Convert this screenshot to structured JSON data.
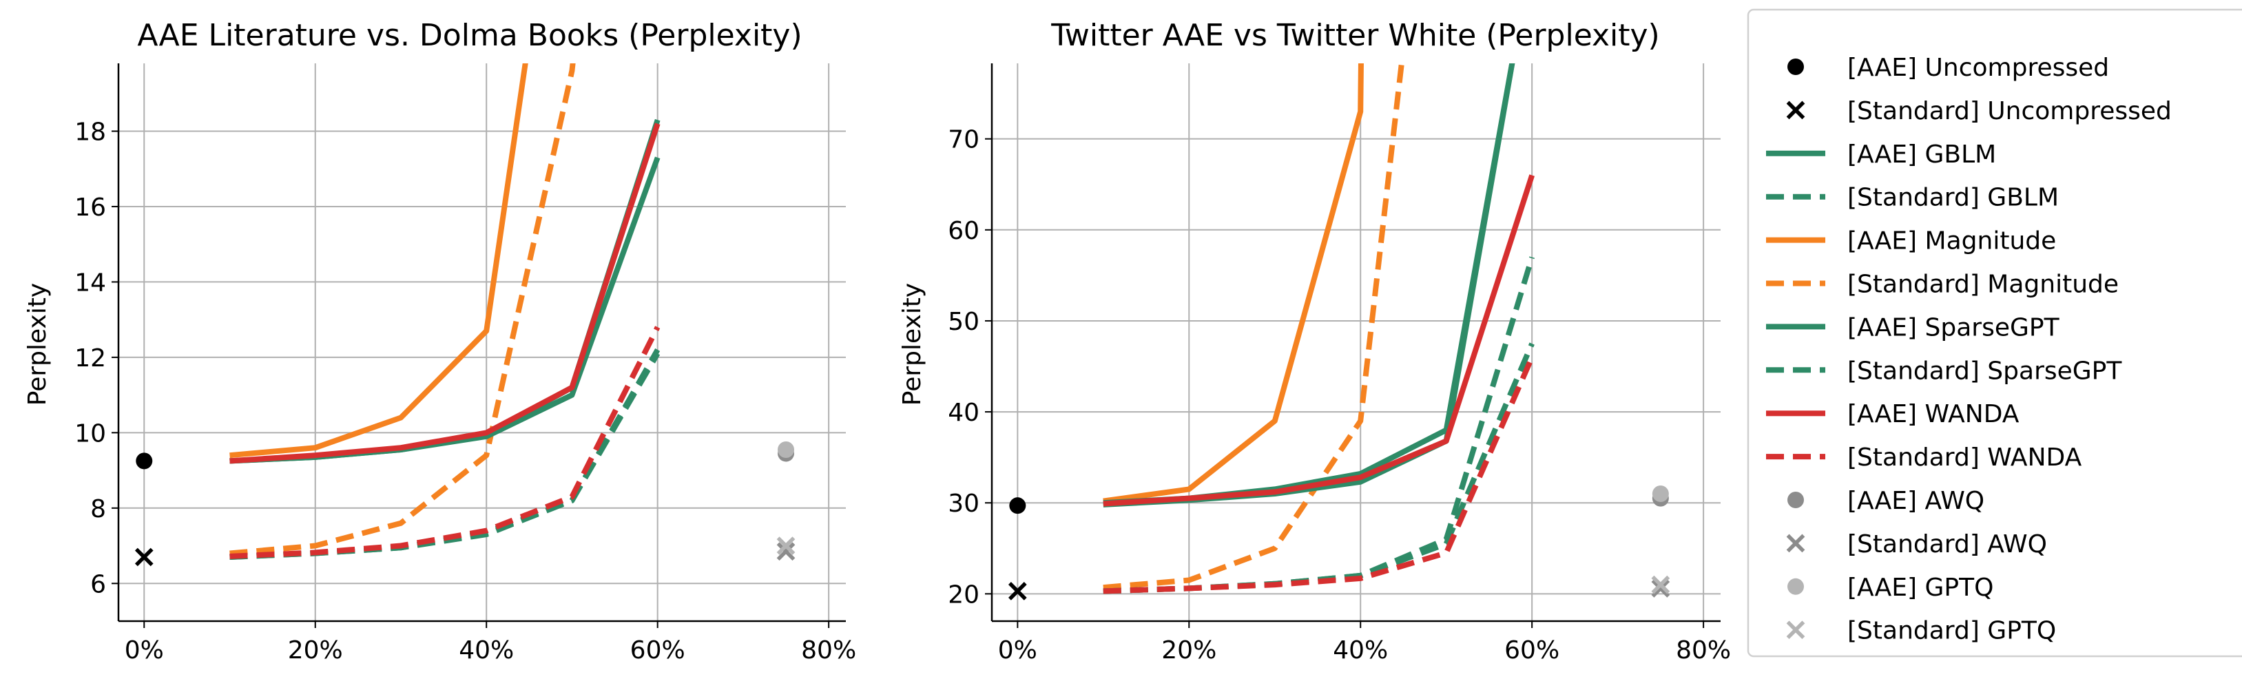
{
  "figure": {
    "background": "#ffffff"
  },
  "chart_data": [
    {
      "id": "aae-lit",
      "type": "line",
      "title": "AAE Literature vs. Dolma Books (Perplexity)",
      "xlabel": "",
      "ylabel": "Perplexity",
      "xlim": [
        -3,
        82
      ],
      "ylim": [
        5,
        19.8
      ],
      "xticks": [
        0,
        20,
        40,
        60,
        80
      ],
      "xtick_labels": [
        "0%",
        "20%",
        "40%",
        "60%",
        "80%"
      ],
      "yticks": [
        6,
        8,
        10,
        12,
        14,
        16,
        18
      ],
      "ytick_labels": [
        "6",
        "8",
        "10",
        "12",
        "14",
        "16",
        "18"
      ],
      "grid": true,
      "series": [
        {
          "name": "[Standard] Magnitude",
          "color": "#f58220",
          "dash": true,
          "x": [
            10,
            20,
            30,
            40,
            50,
            55
          ],
          "y": [
            6.8,
            7.0,
            7.6,
            9.4,
            19.6,
            30
          ]
        },
        {
          "name": "[AAE] Magnitude",
          "color": "#f58220",
          "dash": false,
          "x": [
            10,
            20,
            30,
            40,
            45,
            50
          ],
          "y": [
            9.4,
            9.6,
            10.4,
            12.7,
            20.5,
            30
          ]
        },
        {
          "name": "[Standard] SparseGPT",
          "color": "#2e8b67",
          "dash": true,
          "x": [
            10,
            20,
            30,
            40,
            50,
            60
          ],
          "y": [
            6.7,
            6.8,
            6.95,
            7.35,
            8.2,
            12.2
          ]
        },
        {
          "name": "[Standard] GBLM",
          "color": "#2e8b67",
          "dash": true,
          "x": [
            10,
            20,
            30,
            40,
            50,
            60
          ],
          "y": [
            6.7,
            6.8,
            6.95,
            7.3,
            8.2,
            12.1
          ]
        },
        {
          "name": "[AAE] SparseGPT",
          "color": "#2e8b67",
          "dash": false,
          "x": [
            10,
            20,
            30,
            40,
            50,
            60
          ],
          "y": [
            9.25,
            9.35,
            9.55,
            9.9,
            11.0,
            17.3
          ]
        },
        {
          "name": "[AAE] GBLM",
          "color": "#2e8b67",
          "dash": false,
          "x": [
            10,
            20,
            30,
            40,
            50,
            60
          ],
          "y": [
            9.25,
            9.35,
            9.55,
            9.95,
            11.2,
            18.3
          ]
        },
        {
          "name": "[Standard] WANDA",
          "color": "#d62f2f",
          "dash": true,
          "x": [
            10,
            20,
            30,
            40,
            50,
            60
          ],
          "y": [
            6.72,
            6.82,
            7.0,
            7.4,
            8.3,
            12.8
          ]
        },
        {
          "name": "[AAE] WANDA",
          "color": "#d62f2f",
          "dash": false,
          "x": [
            10,
            20,
            30,
            40,
            50,
            60
          ],
          "y": [
            9.25,
            9.4,
            9.6,
            10.0,
            11.2,
            18.2
          ]
        }
      ],
      "points": [
        {
          "name": "[AAE] Uncompressed",
          "marker": "circle",
          "color": "#000000",
          "x": 0,
          "y": 9.25
        },
        {
          "name": "[Standard] Uncompressed",
          "marker": "x",
          "color": "#000000",
          "x": 0,
          "y": 6.7
        },
        {
          "name": "[AAE] AWQ",
          "marker": "circle",
          "color": "#8c8c8c",
          "x": 75,
          "y": 9.45
        },
        {
          "name": "[Standard] AWQ",
          "marker": "x",
          "color": "#8c8c8c",
          "x": 75,
          "y": 6.85
        },
        {
          "name": "[AAE] GPTQ",
          "marker": "circle",
          "color": "#b4b4b4",
          "x": 75,
          "y": 9.55
        },
        {
          "name": "[Standard] GPTQ",
          "marker": "x",
          "color": "#b4b4b4",
          "x": 75,
          "y": 7.0
        }
      ]
    },
    {
      "id": "twitter",
      "type": "line",
      "title": "Twitter AAE vs Twitter White (Perplexity)",
      "xlabel": "",
      "ylabel": "Perplexity",
      "xlim": [
        -3,
        82
      ],
      "ylim": [
        17,
        78.3
      ],
      "xticks": [
        0,
        20,
        40,
        60,
        80
      ],
      "xtick_labels": [
        "0%",
        "20%",
        "40%",
        "60%",
        "80%"
      ],
      "yticks": [
        20,
        30,
        40,
        50,
        60,
        70
      ],
      "ytick_labels": [
        "20",
        "30",
        "40",
        "50",
        "60",
        "70"
      ],
      "grid": true,
      "series": [
        {
          "name": "[Standard] Magnitude",
          "color": "#f58220",
          "dash": true,
          "x": [
            10,
            20,
            30,
            40,
            45
          ],
          "y": [
            20.7,
            21.5,
            25.0,
            39.0,
            80
          ]
        },
        {
          "name": "[AAE] Magnitude",
          "color": "#f58220",
          "dash": false,
          "x": [
            10,
            20,
            30,
            40,
            40.1
          ],
          "y": [
            30.2,
            31.5,
            39.0,
            73.0,
            82
          ]
        },
        {
          "name": "[Standard] SparseGPT",
          "color": "#2e8b67",
          "dash": true,
          "x": [
            10,
            20,
            30,
            40,
            50,
            60
          ],
          "y": [
            20.3,
            20.6,
            21.1,
            22.0,
            26.0,
            57.0
          ]
        },
        {
          "name": "[Standard] GBLM",
          "color": "#2e8b67",
          "dash": true,
          "x": [
            10,
            20,
            30,
            40,
            50,
            60
          ],
          "y": [
            20.3,
            20.6,
            21.1,
            22.0,
            25.5,
            47.5
          ]
        },
        {
          "name": "[AAE] SparseGPT",
          "color": "#2e8b67",
          "dash": false,
          "x": [
            10,
            20,
            30,
            40,
            50,
            58
          ],
          "y": [
            30.0,
            30.5,
            31.5,
            33.2,
            38.0,
            80
          ]
        },
        {
          "name": "[AAE] GBLM",
          "color": "#2e8b67",
          "dash": false,
          "x": [
            10,
            20,
            30,
            40,
            50,
            58
          ],
          "y": [
            29.8,
            30.3,
            31.0,
            32.3,
            36.8,
            80
          ]
        },
        {
          "name": "[Standard] WANDA",
          "color": "#d62f2f",
          "dash": true,
          "x": [
            10,
            20,
            30,
            40,
            50,
            60
          ],
          "y": [
            20.3,
            20.6,
            21.0,
            21.7,
            24.5,
            46.0
          ]
        },
        {
          "name": "[AAE] WANDA",
          "color": "#d62f2f",
          "dash": false,
          "x": [
            10,
            20,
            30,
            40,
            50,
            60
          ],
          "y": [
            29.9,
            30.5,
            31.2,
            32.8,
            36.8,
            66.0
          ]
        }
      ],
      "points": [
        {
          "name": "[AAE] Uncompressed",
          "marker": "circle",
          "color": "#000000",
          "x": 0,
          "y": 29.7
        },
        {
          "name": "[Standard] Uncompressed",
          "marker": "x",
          "color": "#000000",
          "x": 0,
          "y": 20.3
        },
        {
          "name": "[AAE] AWQ",
          "marker": "circle",
          "color": "#8c8c8c",
          "x": 75,
          "y": 30.5
        },
        {
          "name": "[Standard] AWQ",
          "marker": "x",
          "color": "#8c8c8c",
          "x": 75,
          "y": 20.6
        },
        {
          "name": "[AAE] GPTQ",
          "marker": "circle",
          "color": "#b4b4b4",
          "x": 75,
          "y": 31.0
        },
        {
          "name": "[Standard] GPTQ",
          "marker": "x",
          "color": "#b4b4b4",
          "x": 75,
          "y": 21.0
        }
      ]
    }
  ],
  "legend": {
    "placement": "right",
    "entries": [
      {
        "label": "[AAE] Uncompressed",
        "kind": "circle",
        "color": "#000000"
      },
      {
        "label": "[Standard] Uncompressed",
        "kind": "x",
        "color": "#000000"
      },
      {
        "label": "[AAE] GBLM",
        "kind": "solid",
        "color": "#2e8b67"
      },
      {
        "label": "[Standard] GBLM",
        "kind": "dashed",
        "color": "#2e8b67"
      },
      {
        "label": "[AAE] Magnitude",
        "kind": "solid",
        "color": "#f58220"
      },
      {
        "label": "[Standard] Magnitude",
        "kind": "dashed",
        "color": "#f58220"
      },
      {
        "label": "[AAE] SparseGPT",
        "kind": "solid",
        "color": "#2e8b67"
      },
      {
        "label": "[Standard] SparseGPT",
        "kind": "dashed",
        "color": "#2e8b67"
      },
      {
        "label": "[AAE] WANDA",
        "kind": "solid",
        "color": "#d62f2f"
      },
      {
        "label": "[Standard] WANDA",
        "kind": "dashed",
        "color": "#d62f2f"
      },
      {
        "label": "[AAE] AWQ",
        "kind": "circle",
        "color": "#8c8c8c"
      },
      {
        "label": "[Standard] AWQ",
        "kind": "x",
        "color": "#8c8c8c"
      },
      {
        "label": "[AAE] GPTQ",
        "kind": "circle",
        "color": "#b4b4b4"
      },
      {
        "label": "[Standard] GPTQ",
        "kind": "x",
        "color": "#b4b4b4"
      }
    ]
  }
}
